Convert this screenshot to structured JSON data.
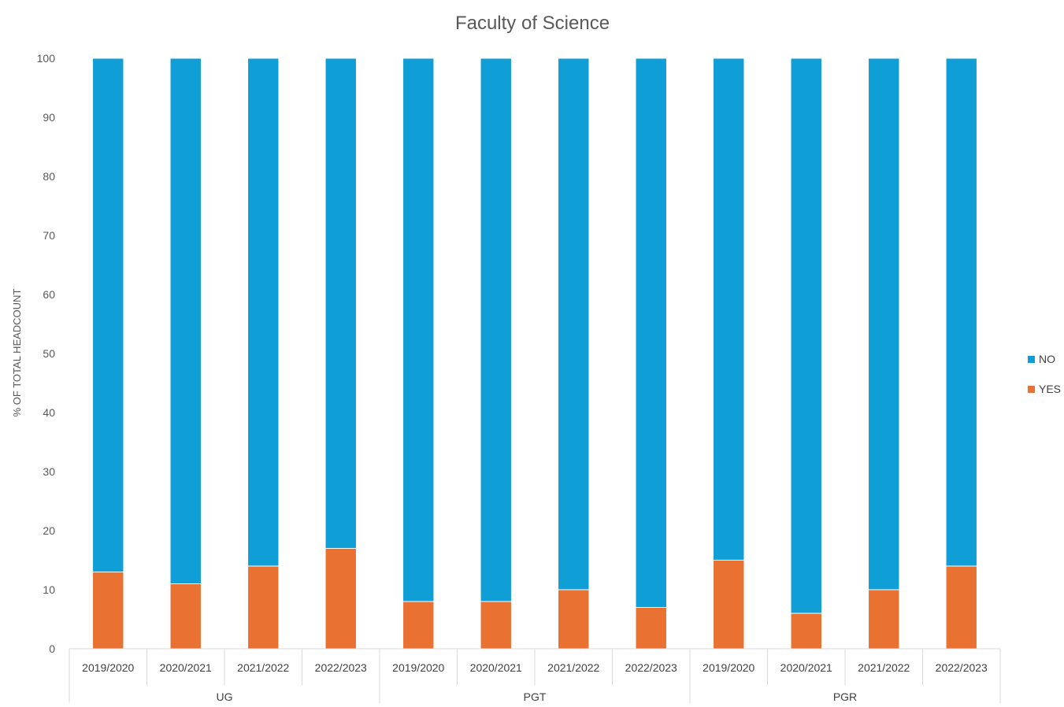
{
  "chart_data": {
    "type": "bar",
    "stacked": true,
    "title": "Faculty of Science",
    "ylabel": "% OF TOTAL HEADCOUNT",
    "xlabel": "",
    "ylim": [
      0,
      100
    ],
    "yticks": [
      "0",
      "10",
      "20",
      "30",
      "40",
      "50",
      "60",
      "70",
      "80",
      "90",
      "100"
    ],
    "grid": false,
    "legend_position": "right",
    "groups": [
      {
        "label": "UG",
        "categories": [
          "2019/2020",
          "2020/2021",
          "2021/2022",
          "2022/2023"
        ]
      },
      {
        "label": "PGT",
        "categories": [
          "2019/2020",
          "2020/2021",
          "2021/2022",
          "2022/2023"
        ]
      },
      {
        "label": "PGR",
        "categories": [
          "2019/2020",
          "2020/2021",
          "2021/2022",
          "2022/2023"
        ]
      }
    ],
    "series": [
      {
        "name": "YES",
        "color": "#E97132",
        "values": [
          13,
          11,
          14,
          17,
          8,
          8,
          10,
          7,
          15,
          6,
          10,
          14
        ]
      },
      {
        "name": "NO",
        "color": "#0F9ED5",
        "values": [
          87,
          89,
          86,
          83,
          92,
          92,
          90,
          93,
          85,
          94,
          90,
          86
        ]
      }
    ],
    "legend": [
      {
        "name": "NO",
        "color": "#0F9ED5"
      },
      {
        "name": "YES",
        "color": "#E97132"
      }
    ]
  }
}
